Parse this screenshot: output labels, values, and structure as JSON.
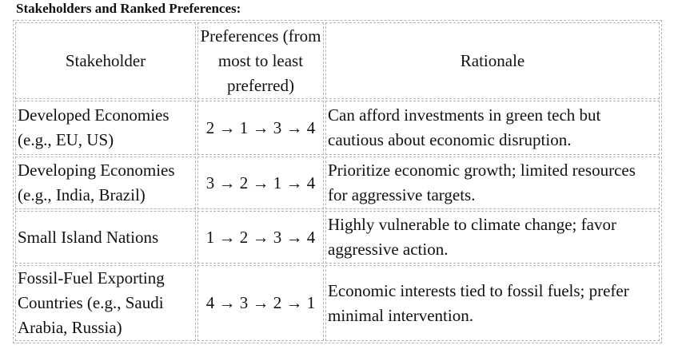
{
  "title": "Stakeholders and Ranked Preferences:",
  "table": {
    "headers": {
      "stakeholder": "Stakeholder",
      "preferences": "Preferences (from most to least preferred)",
      "rationale": "Rationale"
    },
    "rows": [
      {
        "stakeholder": "Developed Economies (e.g., EU, US)",
        "preferences": "2 → 1 → 3 → 4",
        "rationale": "Can afford investments in green tech but cautious about economic disruption."
      },
      {
        "stakeholder": "Developing Economies (e.g., India, Brazil)",
        "preferences": "3 → 2 → 1 → 4",
        "rationale": "Prioritize economic growth; limited resources for aggressive targets."
      },
      {
        "stakeholder": "Small Island Nations",
        "preferences": "1 → 2 → 3 → 4",
        "rationale": "Highly vulnerable to climate change; favor aggressive action."
      },
      {
        "stakeholder": "Fossil-Fuel Exporting Countries (e.g., Saudi Arabia, Russia)",
        "preferences": "4 → 3 → 2 → 1",
        "rationale": "Economic interests tied to fossil fuels; prefer minimal intervention."
      }
    ]
  }
}
